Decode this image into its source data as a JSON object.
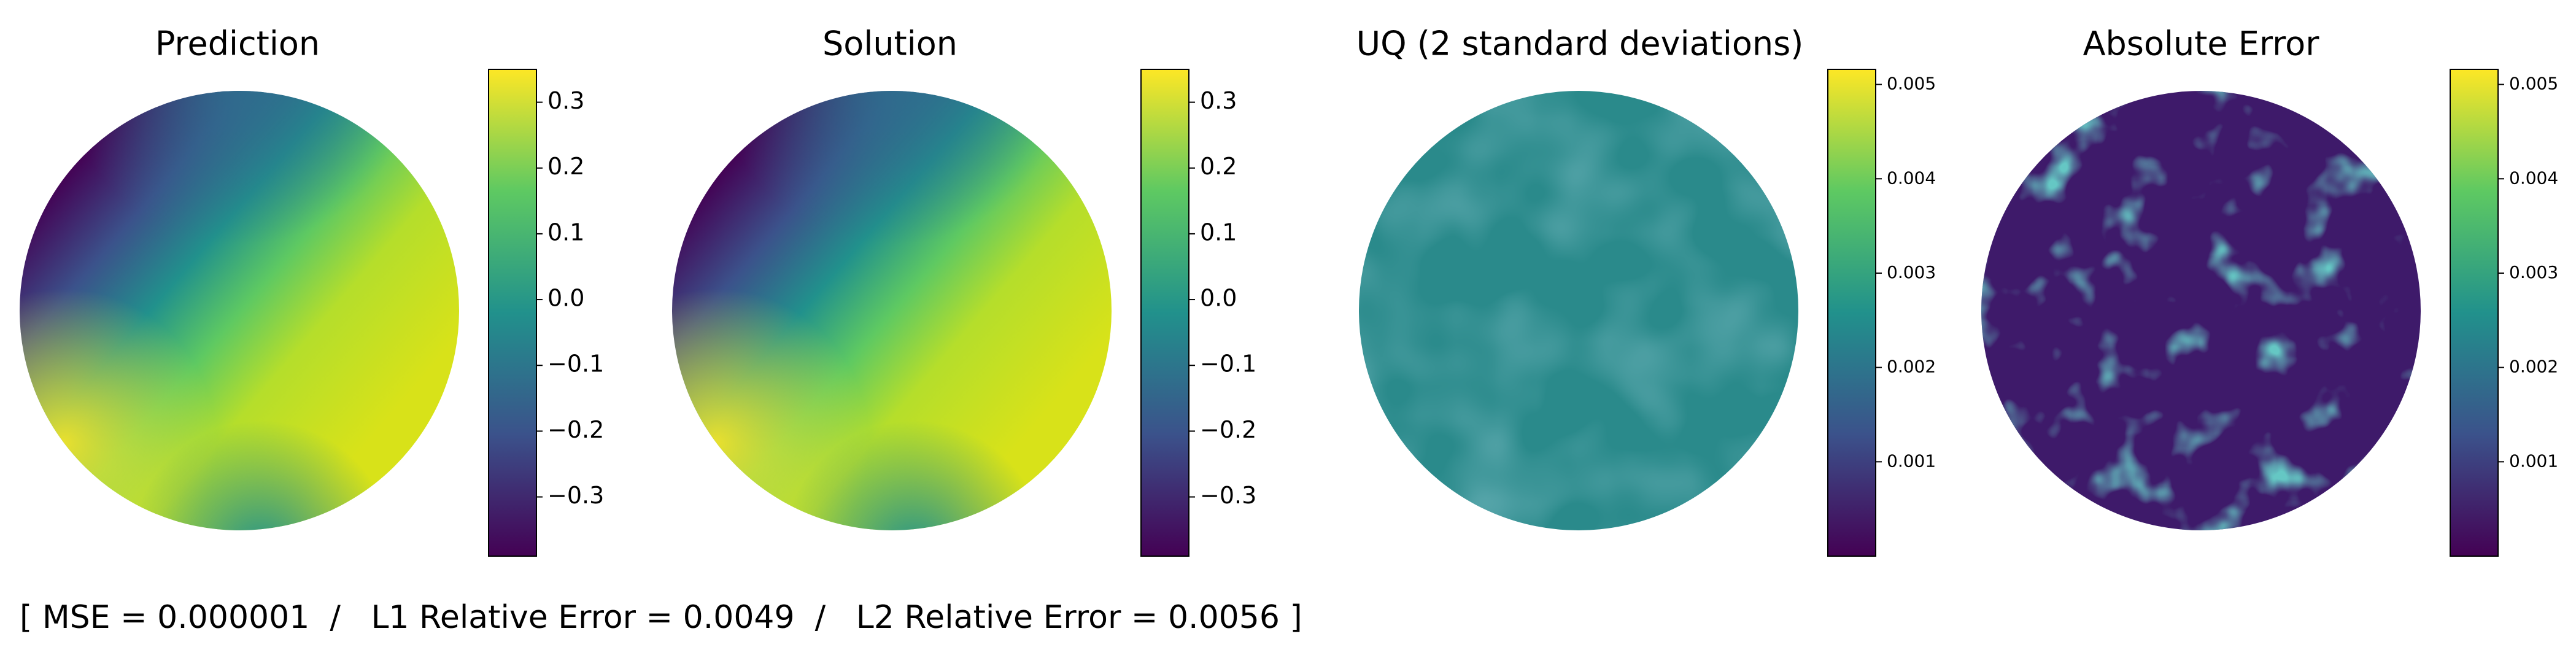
{
  "chart_data": [
    {
      "type": "heatmap",
      "title": "Prediction",
      "colormap": [
        "#440154",
        "#3b528b",
        "#21918c",
        "#5ec962",
        "#fde725"
      ],
      "clim": [
        -0.39,
        0.35
      ],
      "cticks": [
        {
          "value": -0.3,
          "label": "−0.3"
        },
        {
          "value": -0.2,
          "label": "−0.2"
        },
        {
          "value": -0.1,
          "label": "−0.1"
        },
        {
          "value": 0.0,
          "label": "0.0"
        },
        0.1,
        0.2,
        0.3
      ]
    },
    {
      "type": "heatmap",
      "title": "Solution",
      "colormap": [
        "#440154",
        "#3b528b",
        "#21918c",
        "#5ec962",
        "#fde725"
      ],
      "clim": [
        -0.39,
        0.35
      ],
      "cticks": [
        {
          "value": -0.3,
          "label": "−0.3"
        },
        {
          "value": -0.2,
          "label": "−0.2"
        },
        {
          "value": -0.1,
          "label": "−0.1"
        },
        {
          "value": 0.0,
          "label": "0.0"
        },
        0.1,
        0.2,
        0.3
      ]
    },
    {
      "type": "heatmap",
      "title": "UQ (2 standard deviations)",
      "colormap": [
        "#440154",
        "#3b528b",
        "#21918c",
        "#5ec962",
        "#fde725"
      ],
      "clim": [
        0,
        0.00516
      ],
      "cticks": [
        0.001,
        0.002,
        0.003,
        0.004,
        0.005
      ]
    },
    {
      "type": "heatmap",
      "title": "Absolute Error",
      "colormap": [
        "#440154",
        "#3b528b",
        "#21918c",
        "#5ec962",
        "#fde725"
      ],
      "clim": [
        0,
        0.00516
      ],
      "cticks": [
        0.001,
        0.002,
        0.003,
        0.004,
        0.005
      ]
    }
  ],
  "footer": "[ MSE = 0.000001  /   L1 Relative Error = 0.0049  /   L2 Relative Error = 0.0056 ]"
}
